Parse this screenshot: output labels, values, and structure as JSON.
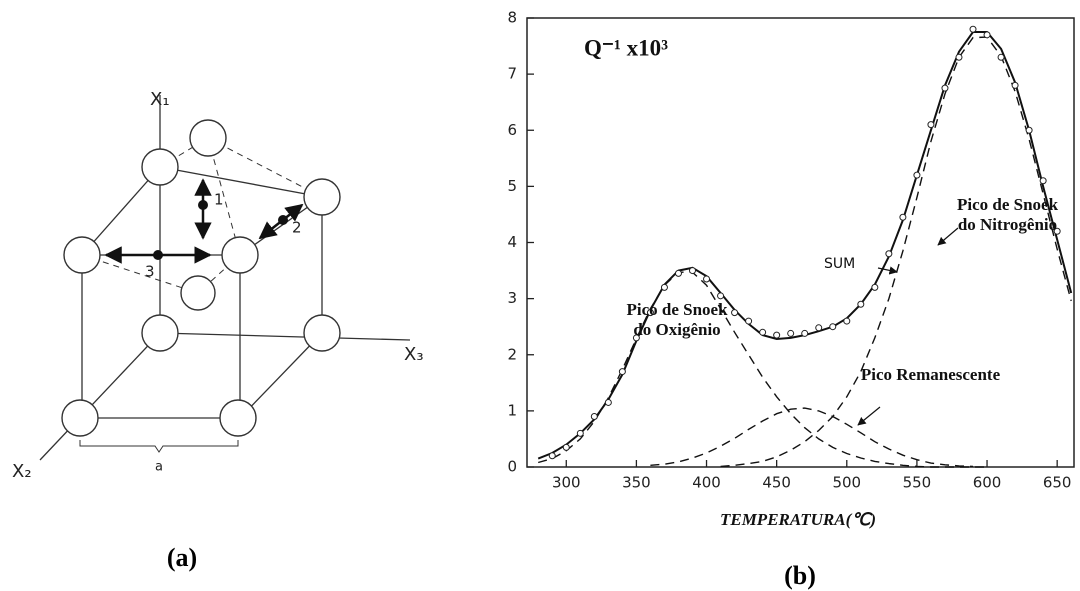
{
  "diagram": {
    "axis_labels": [
      "X₁",
      "X₂",
      "X₃"
    ],
    "jump_labels": [
      "1",
      "2",
      "3"
    ],
    "lattice_label": "a",
    "caption": "(a)"
  },
  "chart_data": {
    "type": "line",
    "title": "Q⁻¹ x10³",
    "xlabel": "TEMPERATURA(℃)",
    "caption": "(b)",
    "xlim": [
      272,
      662
    ],
    "xticks": [
      300,
      350,
      400,
      450,
      500,
      550,
      600,
      650
    ],
    "ylim": [
      0,
      8
    ],
    "yticks": [
      0,
      1,
      2,
      3,
      4,
      5,
      6,
      7,
      8
    ],
    "x": [
      280,
      290,
      300,
      310,
      320,
      330,
      340,
      350,
      360,
      370,
      380,
      390,
      400,
      410,
      420,
      430,
      440,
      450,
      460,
      470,
      480,
      490,
      500,
      510,
      520,
      530,
      540,
      550,
      560,
      570,
      580,
      590,
      600,
      610,
      620,
      630,
      640,
      650,
      660
    ],
    "series": [
      {
        "name": "SUM",
        "color": "#111111",
        "dashed": false,
        "values": [
          0.15,
          0.25,
          0.4,
          0.6,
          0.85,
          1.2,
          1.65,
          2.25,
          2.8,
          3.25,
          3.5,
          3.55,
          3.4,
          3.1,
          2.8,
          2.55,
          2.35,
          2.28,
          2.3,
          2.35,
          2.42,
          2.5,
          2.65,
          2.9,
          3.25,
          3.75,
          4.4,
          5.2,
          6.0,
          6.8,
          7.4,
          7.75,
          7.75,
          7.45,
          6.85,
          6.0,
          5.0,
          4.05,
          3.1
        ]
      },
      {
        "name": "Pico de Snoek do Oxigênio",
        "color": "#111111",
        "dashed": true,
        "values": [
          0.08,
          0.15,
          0.29,
          0.5,
          0.81,
          1.23,
          1.74,
          2.29,
          2.82,
          3.24,
          3.47,
          3.47,
          3.24,
          2.82,
          2.4,
          2.0,
          1.6,
          1.25,
          0.95,
          0.7,
          0.5,
          0.35,
          0.24,
          0.16,
          0.1,
          0.06,
          0.03,
          0.01,
          0,
          0,
          0,
          0,
          0,
          null,
          null,
          null,
          null,
          null,
          null
        ]
      },
      {
        "name": "Pico de Snoek do Nitrogênio",
        "color": "#111111",
        "dashed": true,
        "values": [
          null,
          null,
          null,
          null,
          null,
          null,
          null,
          null,
          null,
          null,
          null,
          null,
          null,
          0.01,
          0.03,
          0.06,
          0.1,
          0.18,
          0.3,
          0.45,
          0.65,
          0.9,
          1.25,
          1.7,
          2.3,
          3.0,
          3.85,
          4.8,
          5.8,
          6.65,
          7.3,
          7.65,
          7.66,
          7.32,
          6.69,
          5.84,
          4.87,
          3.88,
          2.96
        ]
      },
      {
        "name": "Pico Remanescente",
        "color": "#111111",
        "dashed": true,
        "values": [
          null,
          null,
          null,
          null,
          null,
          null,
          null,
          null,
          0.03,
          0.05,
          0.09,
          0.16,
          0.25,
          0.37,
          0.51,
          0.67,
          0.82,
          0.95,
          1.03,
          1.05,
          1.0,
          0.9,
          0.76,
          0.61,
          0.45,
          0.32,
          0.21,
          0.13,
          0.07,
          0.04,
          0.02,
          0.01,
          null,
          null,
          null,
          null,
          null,
          null,
          null
        ]
      }
    ],
    "points": {
      "x": [
        290,
        300,
        310,
        320,
        330,
        340,
        350,
        360,
        370,
        380,
        390,
        400,
        410,
        420,
        430,
        440,
        450,
        460,
        470,
        480,
        490,
        500,
        510,
        520,
        530,
        540,
        550,
        560,
        570,
        580,
        590,
        600,
        610,
        620,
        630,
        640,
        650
      ],
      "y": [
        0.2,
        0.35,
        0.6,
        0.9,
        1.15,
        1.7,
        2.3,
        2.75,
        3.2,
        3.45,
        3.5,
        3.35,
        3.05,
        2.75,
        2.6,
        2.4,
        2.35,
        2.38,
        2.38,
        2.48,
        2.5,
        2.6,
        2.9,
        3.2,
        3.8,
        4.45,
        5.2,
        6.1,
        6.75,
        7.3,
        7.8,
        7.7,
        7.3,
        6.8,
        6.0,
        5.1,
        4.2
      ]
    }
  }
}
